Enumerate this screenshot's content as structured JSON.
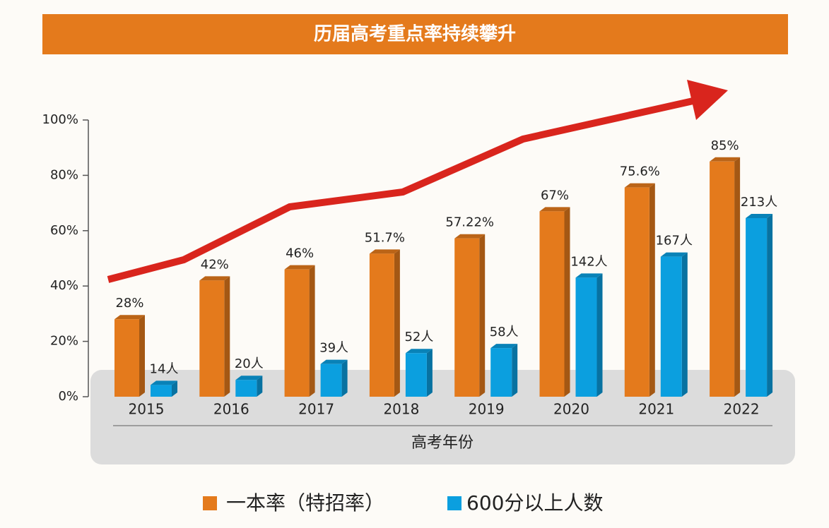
{
  "chart_data": {
    "type": "bar3d",
    "title": "历届高考重点率持续攀升",
    "x_label": "高考年份",
    "categories": [
      "2015",
      "2016",
      "2017",
      "2018",
      "2019",
      "2020",
      "2021",
      "2022"
    ],
    "series": [
      {
        "name": "一本率（特招率）",
        "color": "#e47a1c",
        "values": [
          28,
          42,
          46,
          51.7,
          57.22,
          67,
          75.6,
          85
        ],
        "value_labels": [
          "28%",
          "42%",
          "46%",
          "51.7%",
          "57.22%",
          "67%",
          "75.6%",
          "85%"
        ]
      },
      {
        "name": "600分以上人数",
        "color": "#0b9fdf",
        "axis": "y2",
        "values": [
          14,
          20,
          39,
          52,
          58,
          142,
          167,
          213
        ],
        "value_labels": [
          "14人",
          "20人",
          "39人",
          "52人",
          "58人",
          "142人",
          "167人",
          "213人"
        ]
      }
    ],
    "ylim": [
      0,
      100
    ],
    "yticks": [
      {
        "value": 0,
        "label": "0%"
      },
      {
        "value": 20,
        "label": "20%"
      },
      {
        "value": 40,
        "label": "40%"
      },
      {
        "value": 60,
        "label": "60%"
      },
      {
        "value": 80,
        "label": "80%"
      },
      {
        "value": 100,
        "label": "100%"
      }
    ],
    "y2lim": [
      0,
      330
    ]
  }
}
